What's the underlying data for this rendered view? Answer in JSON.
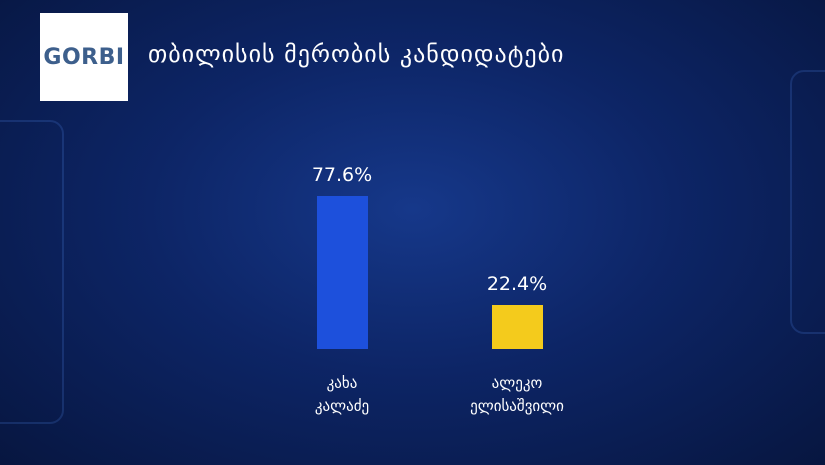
{
  "chart_data": {
    "type": "bar",
    "logo": "GORBI",
    "title": "თბილისის მერობის კანდიდატები",
    "categories": [
      "კახა კალაძე",
      "ალეკო ელისაშვილი"
    ],
    "values": [
      77.6,
      22.4
    ],
    "value_labels": [
      "77.6%",
      "22.4%"
    ],
    "colors": [
      "#1d50dc",
      "#f4cb1c"
    ]
  }
}
